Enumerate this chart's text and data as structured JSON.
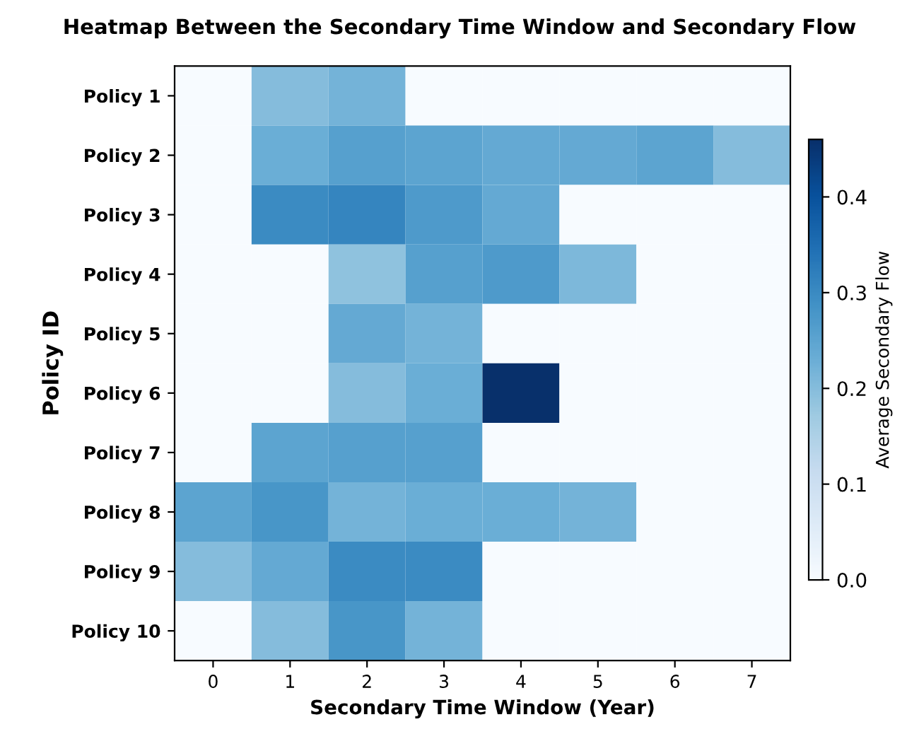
{
  "chart_data": {
    "type": "heatmap",
    "title": "Heatmap Between the Secondary Time Window and Secondary Flow",
    "xlabel": "Secondary Time Window (Year)",
    "ylabel": "Policy ID",
    "clabel": "Average Secondary Flow",
    "categories": [
      "0",
      "1",
      "2",
      "3",
      "4",
      "5",
      "6",
      "7"
    ],
    "y_categories": [
      "Policy 1",
      "Policy 2",
      "Policy 3",
      "Policy 4",
      "Policy 5",
      "Policy 6",
      "Policy 7",
      "Policy 8",
      "Policy 9",
      "Policy 10"
    ],
    "cells": [
      [
        0,
        0.2,
        0.22,
        0,
        0,
        0,
        0,
        0
      ],
      [
        0,
        0.23,
        0.26,
        0.25,
        0.24,
        0.24,
        0.25,
        0.2
      ],
      [
        0,
        0.3,
        0.31,
        0.27,
        0.24,
        0,
        0,
        0
      ],
      [
        0,
        0,
        0.19,
        0.26,
        0.27,
        0.21,
        0,
        0
      ],
      [
        0,
        0,
        0.24,
        0.22,
        0,
        0,
        0,
        0
      ],
      [
        0,
        0,
        0.2,
        0.23,
        0.46,
        0,
        0,
        0
      ],
      [
        0,
        0.25,
        0.26,
        0.26,
        0,
        0,
        0,
        0
      ],
      [
        0.25,
        0.28,
        0.22,
        0.23,
        0.23,
        0.22,
        0,
        0
      ],
      [
        0.2,
        0.24,
        0.3,
        0.3,
        0,
        0,
        0,
        0
      ],
      [
        0,
        0.2,
        0.28,
        0.22,
        0,
        0,
        0,
        0
      ]
    ],
    "clim": [
      0,
      0.46
    ],
    "cticks": [
      {
        "value": 0,
        "label": "0.0"
      },
      0.1,
      0.2,
      0.3,
      0.4
    ]
  }
}
